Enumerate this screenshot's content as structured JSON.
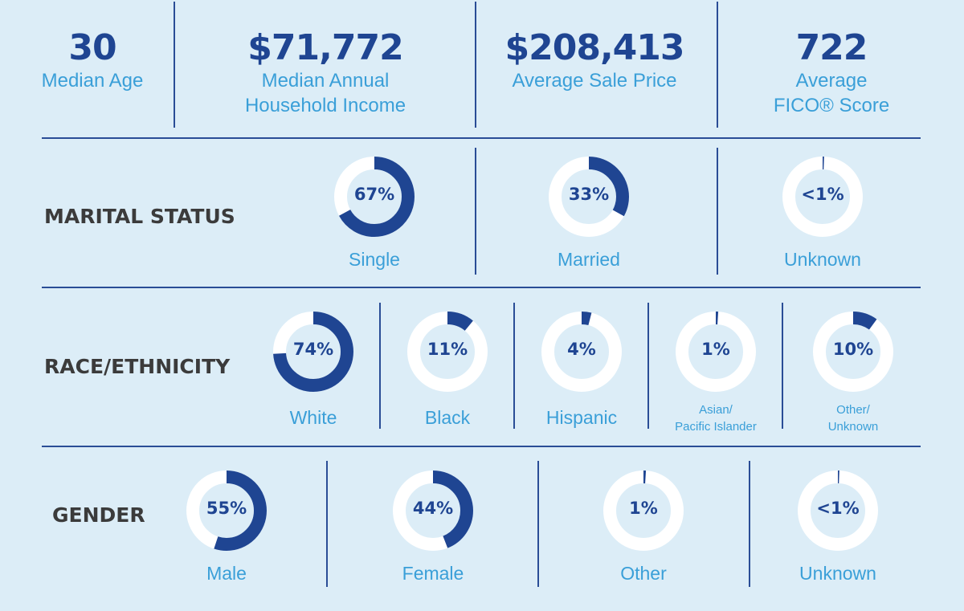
{
  "stats": [
    {
      "value": "30",
      "label": "Median Age"
    },
    {
      "value": "$71,772",
      "label": "Median Annual Household Income"
    },
    {
      "value": "$208,413",
      "label": "Average Sale Price"
    },
    {
      "value": "722",
      "label": "Average FICO® Score"
    }
  ],
  "colors": {
    "background": "#dcedf7",
    "accent": "#1f4592",
    "label": "#3a9fd8",
    "ring": "#ffffff",
    "title": "#3b3b3b"
  },
  "chart_data": [
    {
      "type": "pie",
      "title": "MARITAL STATUS",
      "categories": [
        "Single",
        "Married",
        "Unknown"
      ],
      "values": [
        67,
        33,
        0.5
      ],
      "labels": [
        "67%",
        "33%",
        "<1%"
      ]
    },
    {
      "type": "pie",
      "title": "RACE/ETHNICITY",
      "categories": [
        "White",
        "Black",
        "Hispanic",
        "Asian/ Pacific Islander",
        "Other/ Unknown"
      ],
      "values": [
        74,
        11,
        4,
        1,
        10
      ],
      "labels": [
        "74%",
        "11%",
        "4%",
        "1%",
        "10%"
      ]
    },
    {
      "type": "pie",
      "title": "GENDER",
      "categories": [
        "Male",
        "Female",
        "Other",
        "Unknown"
      ],
      "values": [
        55,
        44,
        1,
        0.5
      ],
      "labels": [
        "55%",
        "44%",
        "1%",
        "<1%"
      ]
    }
  ]
}
